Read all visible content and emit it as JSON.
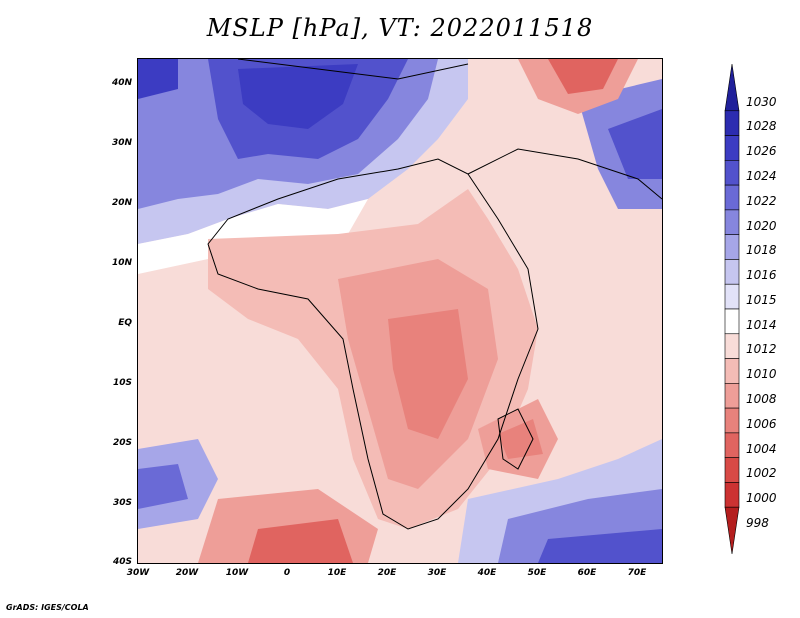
{
  "title": "MSLP [hPa], VT: 2022011518",
  "lat_labels": [
    "40N",
    "30N",
    "20N",
    "10N",
    "EQ",
    "10S",
    "20S",
    "30S",
    "40S"
  ],
  "lon_labels": [
    "30W",
    "20W",
    "10W",
    "0",
    "10E",
    "20E",
    "30E",
    "40E",
    "50E",
    "60E",
    "70E"
  ],
  "colorbar": {
    "labels": [
      "1030",
      "1028",
      "1026",
      "1024",
      "1022",
      "1020",
      "1018",
      "1016",
      "1015",
      "1014",
      "1012",
      "1010",
      "1008",
      "1006",
      "1004",
      "1002",
      "1000",
      "998"
    ],
    "colors": [
      "#20209a",
      "#2c2cb0",
      "#3c3cc2",
      "#5252cc",
      "#6a6ad6",
      "#8686de",
      "#a6a6e8",
      "#c6c6f0",
      "#e2e2f8",
      "#ffffff",
      "#f8dcd8",
      "#f4bcb6",
      "#ee9e98",
      "#e8827c",
      "#e06460",
      "#d84a46",
      "#cc3232",
      "#b41e1e"
    ]
  },
  "footer": "GrADS: IGES/COLA"
}
